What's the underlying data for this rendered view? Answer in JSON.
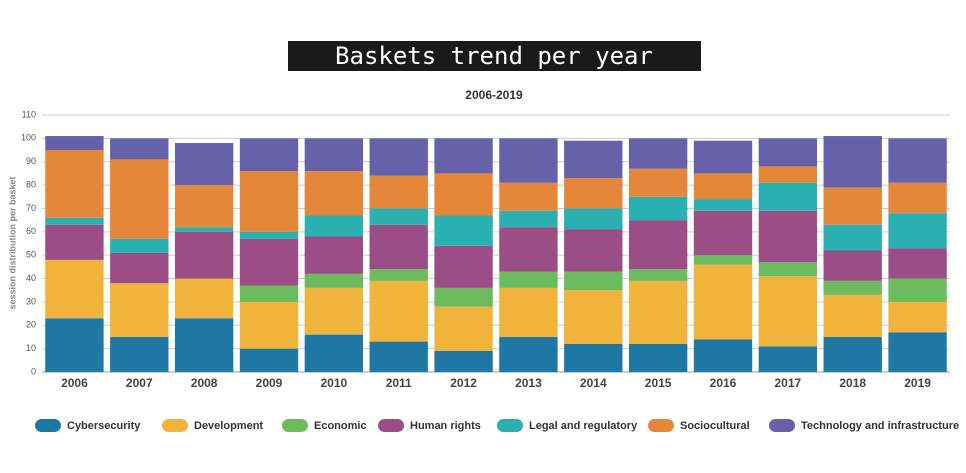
{
  "chart_data": {
    "type": "stacked_bar",
    "title": "Baskets trend per year",
    "subtitle": "2006-2019",
    "y_label": "session distribution per basket",
    "categories": [
      "2006",
      "2007",
      "2008",
      "2009",
      "2010",
      "2011",
      "2012",
      "2013",
      "2014",
      "2015",
      "2016",
      "2017",
      "2018",
      "2019"
    ],
    "series": [
      {
        "name": "Cybersecurity",
        "color": "#1f77a4",
        "values": [
          23,
          15,
          23,
          10,
          16,
          13,
          9,
          15,
          12,
          12,
          14,
          11,
          15,
          17
        ]
      },
      {
        "name": "Development",
        "color": "#f0b43c",
        "values": [
          25,
          23,
          17,
          20,
          20,
          26,
          19,
          21,
          23,
          27,
          32,
          30,
          18,
          13
        ]
      },
      {
        "name": "Economic",
        "color": "#6cbb5e",
        "values": [
          0,
          0,
          0,
          7,
          6,
          5,
          8,
          7,
          8,
          5,
          4,
          6,
          6,
          10
        ]
      },
      {
        "name": "Human rights",
        "color": "#9b4d85",
        "values": [
          15,
          13,
          20,
          20,
          16,
          19,
          18,
          19,
          18,
          21,
          19,
          22,
          13,
          13
        ]
      },
      {
        "name": "Legal and regulatory",
        "color": "#2ab0b0",
        "values": [
          3,
          6,
          2,
          3,
          9,
          7,
          13,
          7,
          9,
          10,
          5,
          12,
          11,
          15
        ]
      },
      {
        "name": "Sociocultural",
        "color": "#e5873a",
        "values": [
          29,
          34,
          18,
          26,
          19,
          14,
          18,
          12,
          13,
          12,
          11,
          7,
          16,
          13
        ]
      },
      {
        "name": "Technology and infrastructure",
        "color": "#6661a8",
        "values": [
          6,
          9,
          18,
          14,
          14,
          16,
          15,
          19,
          16,
          13,
          14,
          12,
          22,
          19
        ]
      }
    ],
    "ylim": [
      0,
      110
    ],
    "yticks": [
      0,
      10,
      20,
      30,
      40,
      50,
      60,
      70,
      80,
      90,
      100,
      110
    ],
    "grid": true
  }
}
